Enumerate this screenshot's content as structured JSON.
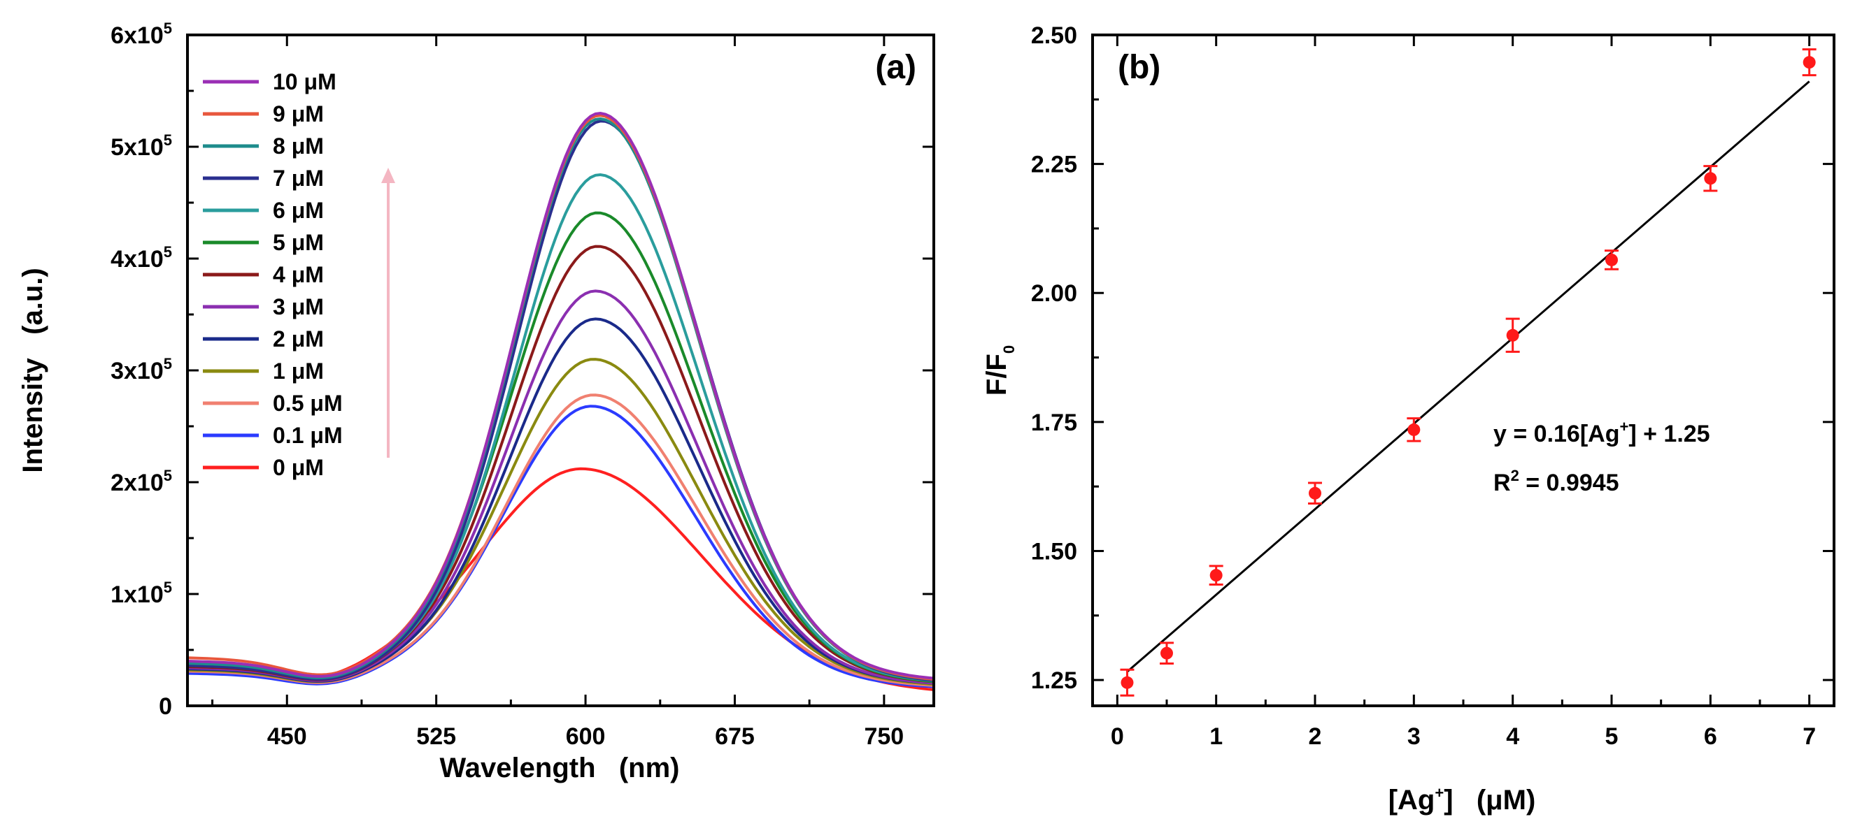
{
  "chart_data": [
    {
      "panel": "(a)",
      "type": "line",
      "xlabel": "Wavelength   (nm)",
      "ylabel": "Intensity   (a.u.)",
      "xlim": [
        400,
        775
      ],
      "ylim": [
        0,
        600000
      ],
      "xticks": [
        450,
        525,
        600,
        675,
        750
      ],
      "ytick_labels": [
        {
          "value": 0,
          "mant": "0",
          "exp": ""
        },
        {
          "value": 100000,
          "mant": "1x10",
          "exp": "5"
        },
        {
          "value": 200000,
          "mant": "2x10",
          "exp": "5"
        },
        {
          "value": 300000,
          "mant": "3x10",
          "exp": "5"
        },
        {
          "value": 400000,
          "mant": "4x10",
          "exp": "5"
        },
        {
          "value": 500000,
          "mant": "5x10",
          "exp": "5"
        },
        {
          "value": 600000,
          "mant": "6x10",
          "exp": "5"
        }
      ],
      "arrow": {
        "direction": "up",
        "color": "#f4b6c2"
      },
      "legend_position": "top-left",
      "series": [
        {
          "name": "10 μM",
          "color": "#9a2fb5",
          "peak_x": 607,
          "peak_y": 530000,
          "width": 46,
          "base_start": 40000,
          "base_end": 23000
        },
        {
          "name": "9 μM",
          "color": "#e8573d",
          "peak_x": 607,
          "peak_y": 528000,
          "width": 46,
          "base_start": 43000,
          "base_end": 22000
        },
        {
          "name": "8 μM",
          "color": "#1e8c8c",
          "peak_x": 607,
          "peak_y": 525000,
          "width": 46,
          "base_start": 38000,
          "base_end": 22000
        },
        {
          "name": "7 μM",
          "color": "#2a2f8f",
          "peak_x": 608,
          "peak_y": 523000,
          "width": 46,
          "base_start": 36000,
          "base_end": 21000
        },
        {
          "name": "6 μM",
          "color": "#2a9d9d",
          "peak_x": 607,
          "peak_y": 475000,
          "width": 46,
          "base_start": 37000,
          "base_end": 21000
        },
        {
          "name": "5 μM",
          "color": "#1a8a2a",
          "peak_x": 606,
          "peak_y": 441000,
          "width": 47,
          "base_start": 36000,
          "base_end": 20000
        },
        {
          "name": "4 μM",
          "color": "#8b1a1a",
          "peak_x": 606,
          "peak_y": 411000,
          "width": 47,
          "base_start": 35000,
          "base_end": 20000
        },
        {
          "name": "3 μM",
          "color": "#8b2fb0",
          "peak_x": 605,
          "peak_y": 371000,
          "width": 47,
          "base_start": 34000,
          "base_end": 19000
        },
        {
          "name": "2 μM",
          "color": "#1a2a8a",
          "peak_x": 605,
          "peak_y": 346000,
          "width": 47,
          "base_start": 33000,
          "base_end": 19000
        },
        {
          "name": "1 μM",
          "color": "#8a8a10",
          "peak_x": 604,
          "peak_y": 310000,
          "width": 48,
          "base_start": 32000,
          "base_end": 18000
        },
        {
          "name": "0.5 μM",
          "color": "#f08070",
          "peak_x": 604,
          "peak_y": 278000,
          "width": 48,
          "base_start": 31000,
          "base_end": 17000
        },
        {
          "name": "0.1 μM",
          "color": "#2b3bff",
          "peak_x": 603,
          "peak_y": 268000,
          "width": 48,
          "base_start": 29000,
          "base_end": 16000
        },
        {
          "name": "0 μM",
          "color": "#ff2020",
          "peak_x": 598,
          "peak_y": 212000,
          "width": 55,
          "base_start": 34000,
          "base_end": 12000
        }
      ]
    },
    {
      "panel": "(b)",
      "type": "scatter",
      "xlabel_main": "[Ag",
      "xlabel_sup": "+",
      "xlabel_rest": "]   (μM)",
      "ylabel_main": "F/F",
      "ylabel_sub": "0",
      "xlim": [
        -0.25,
        7.25
      ],
      "ylim": [
        1.2,
        2.5
      ],
      "xticks": [
        0,
        1,
        2,
        3,
        4,
        5,
        6,
        7
      ],
      "yticks": [
        "1.25",
        "1.50",
        "1.75",
        "2.00",
        "2.25",
        "2.50"
      ],
      "points": [
        {
          "x": 0.1,
          "y": 1.245,
          "err": 0.025
        },
        {
          "x": 0.5,
          "y": 1.302,
          "err": 0.02
        },
        {
          "x": 1,
          "y": 1.453,
          "err": 0.018
        },
        {
          "x": 2,
          "y": 1.612,
          "err": 0.02
        },
        {
          "x": 3,
          "y": 1.735,
          "err": 0.022
        },
        {
          "x": 4,
          "y": 1.918,
          "err": 0.032
        },
        {
          "x": 5,
          "y": 2.064,
          "err": 0.018
        },
        {
          "x": 6,
          "y": 2.222,
          "err": 0.024
        },
        {
          "x": 7,
          "y": 2.447,
          "err": 0.025
        }
      ],
      "point_color": "#ff1a1a",
      "fit": {
        "slope": 0.16,
        "intercept": 1.25,
        "x_start": 0.1,
        "x_end": 7
      },
      "equation_pre": "y = 0.16[Ag",
      "equation_sup": "+",
      "equation_post": "] + 1.25",
      "r2_pre": "R",
      "r2_sup": "2",
      "r2_post": " = 0.9945"
    }
  ]
}
